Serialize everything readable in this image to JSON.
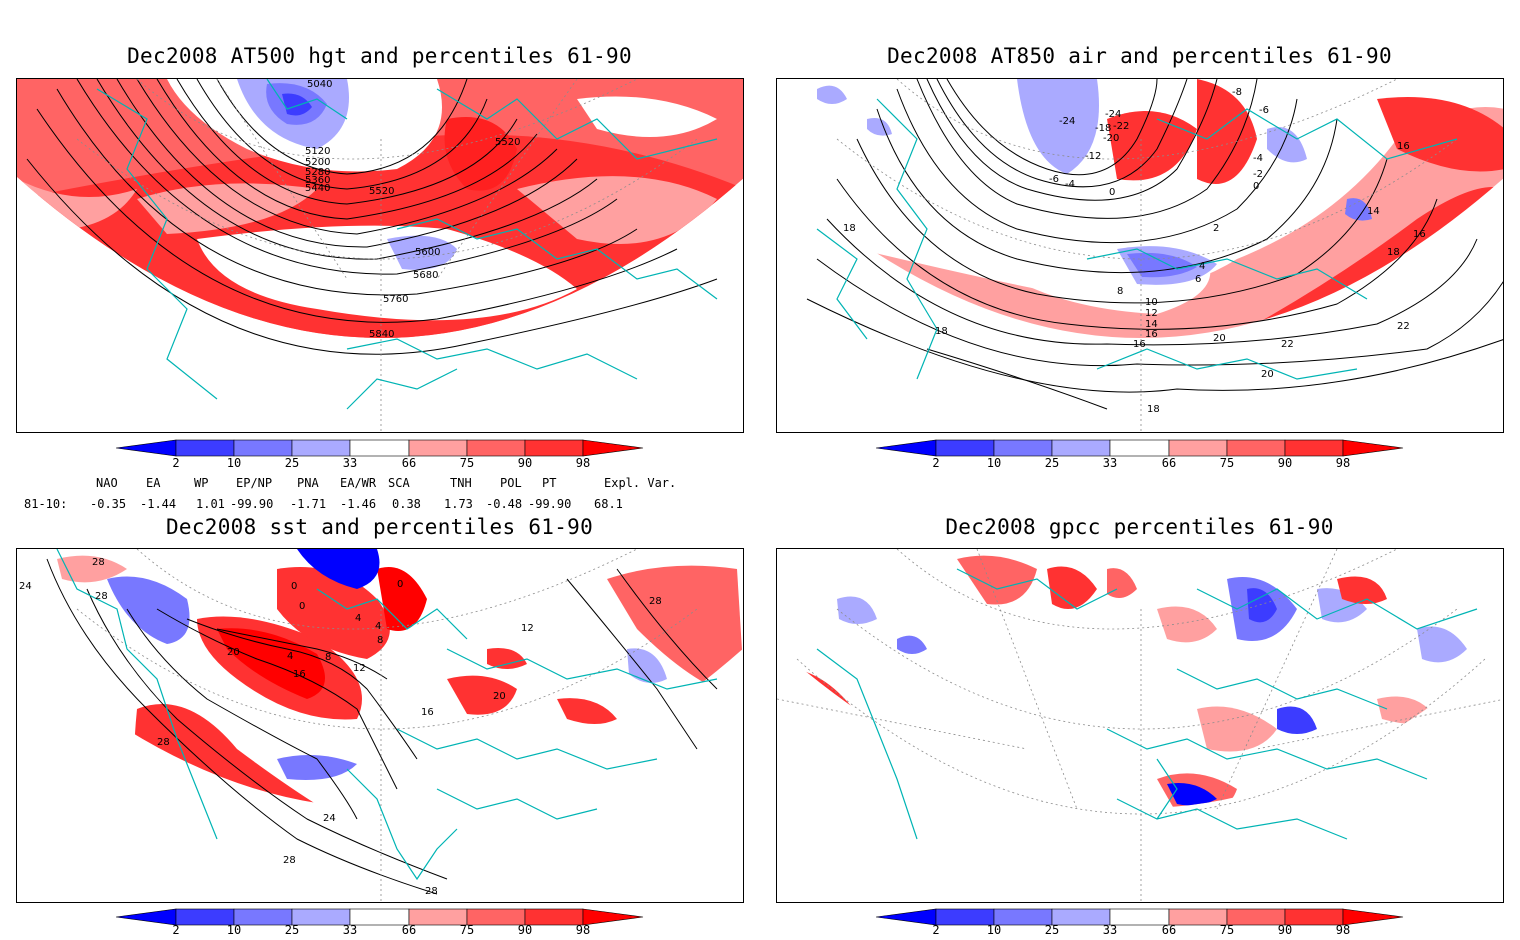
{
  "panels": [
    {
      "id": "p1",
      "title": "Dec2008 AT500 hgt and percentiles 61-90",
      "contour_labels": [
        "5040",
        "5120",
        "5200",
        "5280",
        "5360",
        "5440",
        "5520",
        "5520",
        "5600",
        "5680",
        "5760",
        "5840"
      ]
    },
    {
      "id": "p2",
      "title": "Dec2008 AT850 air and percentiles 61-90",
      "contour_labels": [
        "-24",
        "-24",
        "-18",
        "-22",
        "-20",
        "-12",
        "-8",
        "-6",
        "-4",
        "-2",
        "0",
        "0",
        "-6",
        "-4",
        "2",
        "4",
        "6",
        "8",
        "10",
        "12",
        "14",
        "16",
        "16",
        "14",
        "16",
        "16",
        "18",
        "18",
        "18",
        "20",
        "22",
        "22",
        "20",
        "18"
      ]
    },
    {
      "id": "p3",
      "title": "Dec2008 sst and percentiles 61-90",
      "contour_labels": [
        "28",
        "24",
        "28",
        "0",
        "0",
        "0",
        "4",
        "4",
        "8",
        "4",
        "8",
        "12",
        "16",
        "20",
        "16",
        "12",
        "20",
        "28",
        "24",
        "28",
        "28",
        "28"
      ]
    },
    {
      "id": "p4",
      "title": "Dec2008 gpcc percentiles 61-90",
      "contour_labels": []
    }
  ],
  "colorbar": {
    "labels": [
      "2",
      "10",
      "25",
      "33",
      "66",
      "75",
      "90",
      "98"
    ],
    "colors": {
      "deep_blue": "#0000ff",
      "blue": "#3c3cff",
      "mid_blue": "#7878ff",
      "light_blue": "#aaaaff",
      "white": "#ffffff",
      "light_red": "#ffa0a0",
      "mid_red": "#ff6464",
      "red": "#ff3232",
      "deep_red": "#ff0000"
    }
  },
  "indices": {
    "header": [
      "NAO",
      "EA",
      "WP",
      "EP/NP",
      "PNA",
      "EA/WR",
      "SCA",
      "TNH",
      "POL",
      "PT",
      "Expl. Var."
    ],
    "row_label": "81-10:",
    "values": [
      "-0.35",
      "-1.44",
      "1.01",
      "-99.90",
      "-1.71",
      "-1.46",
      "0.38",
      "1.73",
      "-0.48",
      "-99.90",
      "68.1"
    ]
  },
  "colors": {
    "coast": "#00b4b4",
    "contour": "#000000",
    "grid": "#8c8c8c"
  }
}
